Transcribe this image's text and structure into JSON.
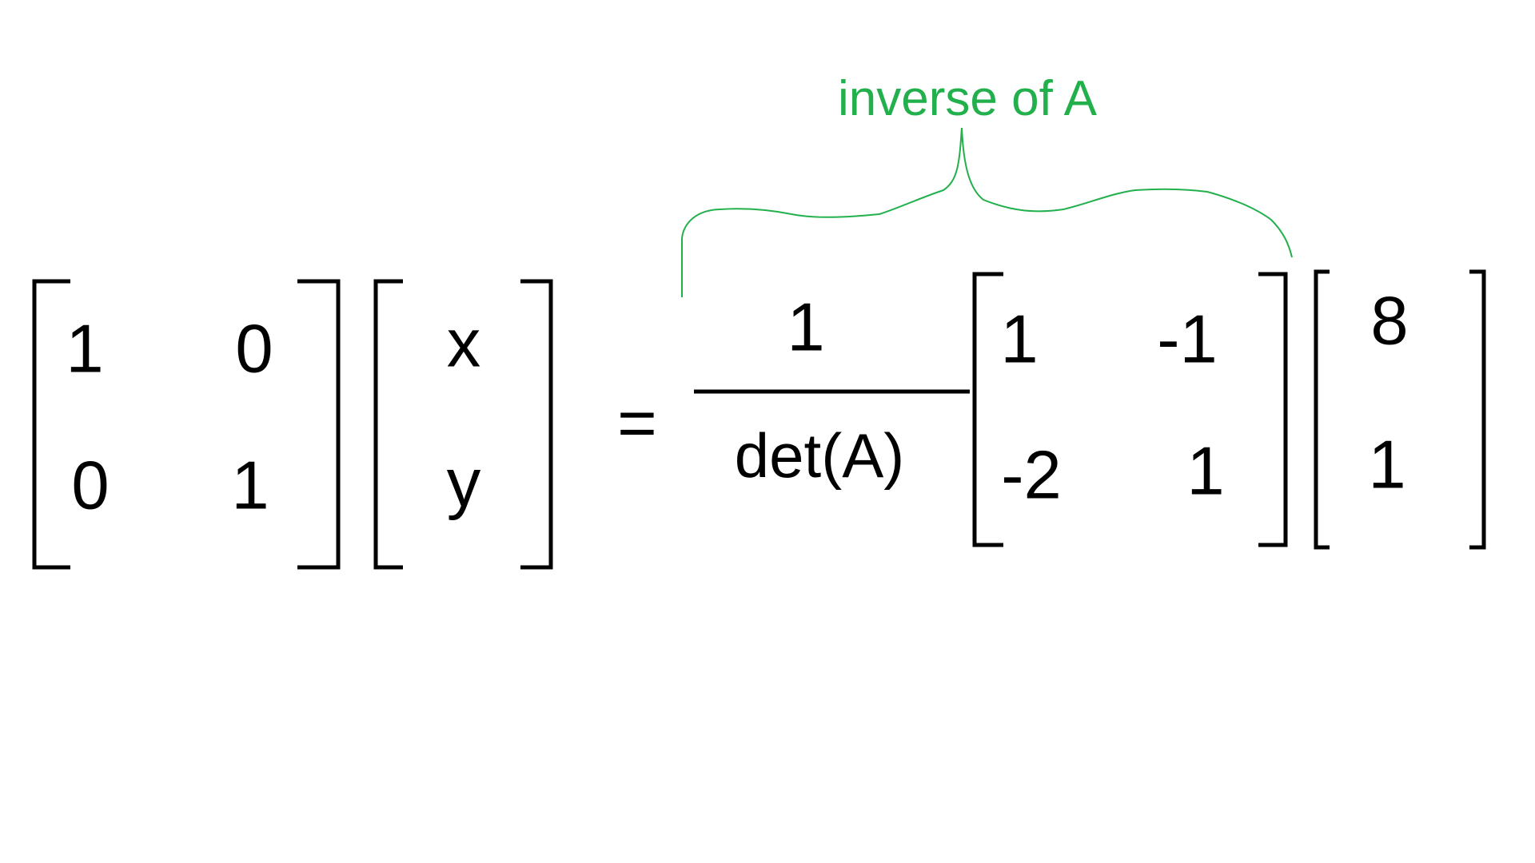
{
  "annotation": {
    "label": "inverse of A",
    "color": "#22b04c"
  },
  "matrix_a": {
    "rows": [
      [
        "1",
        "0"
      ],
      [
        "0",
        "1"
      ]
    ]
  },
  "vector_xy": {
    "rows": [
      "x",
      "y"
    ]
  },
  "equals_sign": "=",
  "fraction": {
    "numerator": "1",
    "denominator": "det(A)"
  },
  "adjugate_matrix": {
    "rows": [
      [
        "1",
        "-1"
      ],
      [
        "-2",
        "1"
      ]
    ]
  },
  "constants_vector": {
    "rows": [
      "8",
      "1"
    ]
  }
}
